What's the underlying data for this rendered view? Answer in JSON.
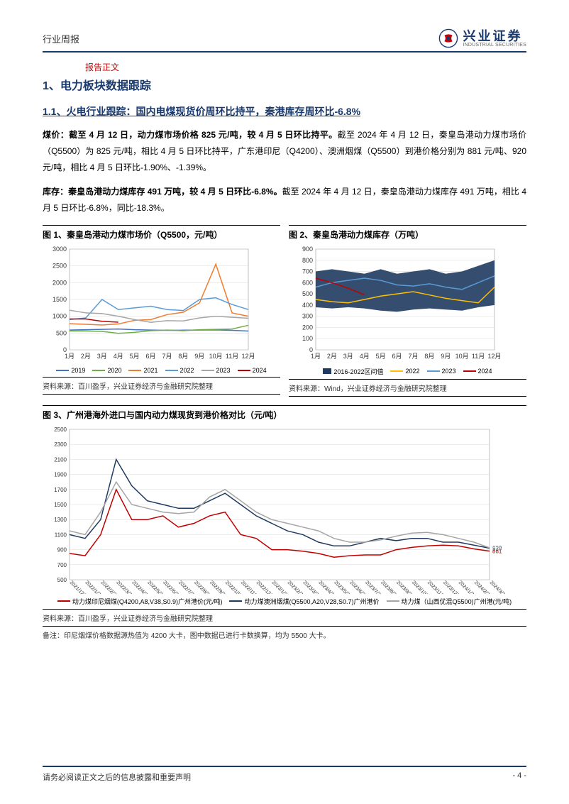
{
  "header": {
    "category": "行业周报",
    "company_cn": "兴业证券",
    "company_en": "INDUSTRIAL SECURITIES"
  },
  "red_label": "报告正文",
  "section1": {
    "num": "1、",
    "title": "电力板块数据跟踪"
  },
  "section11": {
    "num": "1.1、",
    "title": "火电行业跟踪：国内电煤现货价周环比持平，秦港库存周环比-6.8%"
  },
  "para1": {
    "lead": "煤价：截至 4 月 12 日，动力煤市场价格 825 元/吨，较 4 月 5 日环比持平。",
    "body": "截至 2024 年 4 月 12 日，秦皇岛港动力煤市场价（Q5500）为 825 元/吨，相比 4 月 5 日环比持平，广东港印尼（Q4200）、澳洲烟煤（Q5500）到港价格分别为 881 元/吨、920 元/吨，相比 4 月 5 日环比-1.90%、-1.39%。"
  },
  "para2": {
    "lead": "库存：秦皇岛港动力煤库存 491 万吨，较 4 月 5 日环比-6.8%。",
    "body": "截至 2024 年 4 月 12 日，秦皇岛港动力煤库存 491 万吨，相比 4 月 5 日环比-6.8%，同比-18.3%。"
  },
  "chart1": {
    "title": "图 1、秦皇岛港动力煤市场价（Q5500，元/吨）",
    "source": "资料来源：百川盈孚，兴业证券经济与金融研究院整理",
    "type": "line",
    "ylim": [
      0,
      3000
    ],
    "yticks": [
      0,
      500,
      1000,
      1500,
      2000,
      2500,
      3000
    ],
    "xlabels": [
      "1月",
      "2月",
      "3月",
      "4月",
      "5月",
      "6月",
      "7月",
      "8月",
      "9月",
      "10月",
      "11月",
      "12月"
    ],
    "series": [
      {
        "name": "2019",
        "color": "#4472c4",
        "data": [
          590,
          600,
          610,
          620,
          600,
          590,
          580,
          585,
          590,
          595,
          580,
          560
        ]
      },
      {
        "name": "2020",
        "color": "#70ad47",
        "data": [
          560,
          560,
          550,
          490,
          520,
          570,
          590,
          570,
          600,
          610,
          620,
          730
        ]
      },
      {
        "name": "2021",
        "color": "#ed7d31",
        "data": [
          780,
          760,
          740,
          770,
          880,
          900,
          1050,
          1120,
          1400,
          2550,
          1100,
          1000
        ]
      },
      {
        "name": "2022",
        "color": "#5b9bd5",
        "data": [
          900,
          950,
          1500,
          1200,
          1250,
          1300,
          1200,
          1170,
          1500,
          1550,
          1350,
          1200
        ]
      },
      {
        "name": "2023",
        "color": "#a5a5a5",
        "data": [
          1180,
          1100,
          1080,
          1000,
          900,
          820,
          870,
          860,
          950,
          1000,
          970,
          940
        ]
      },
      {
        "name": "2024",
        "color": "#c00000",
        "data": [
          920,
          920,
          850,
          825,
          null,
          null,
          null,
          null,
          null,
          null,
          null,
          null
        ]
      }
    ],
    "background": "#ffffff",
    "grid_color": "#d9d9d9",
    "axis_color": "#808080",
    "font_size": 9
  },
  "chart2": {
    "title": "图 2、秦皇岛港动力煤库存（万吨）",
    "source": "资料来源：Wind，兴业证券经济与金融研究院整理",
    "type": "area-line",
    "ylim": [
      0,
      900
    ],
    "yticks": [
      0,
      100,
      200,
      300,
      400,
      500,
      600,
      700,
      800,
      900
    ],
    "xlabels": [
      "1月",
      "2月",
      "3月",
      "4月",
      "5月",
      "6月",
      "7月",
      "8月",
      "9月",
      "10月",
      "11月",
      "12月"
    ],
    "band": {
      "name": "2016-2022区间值",
      "color": "#1f3a5f",
      "upper": [
        700,
        720,
        700,
        680,
        720,
        680,
        700,
        720,
        680,
        700,
        750,
        800
      ],
      "lower": [
        380,
        370,
        380,
        370,
        350,
        340,
        360,
        370,
        360,
        350,
        380,
        400
      ]
    },
    "series": [
      {
        "name": "2022",
        "color": "#ffc000",
        "data": [
          450,
          430,
          420,
          450,
          480,
          500,
          520,
          490,
          460,
          440,
          420,
          560
        ]
      },
      {
        "name": "2023",
        "color": "#5b9bd5",
        "data": [
          560,
          600,
          620,
          640,
          620,
          580,
          570,
          590,
          560,
          540,
          600,
          660
        ]
      },
      {
        "name": "2024",
        "color": "#c00000",
        "data": [
          640,
          600,
          550,
          491,
          null,
          null,
          null,
          null,
          null,
          null,
          null,
          null
        ]
      }
    ],
    "background": "#ffffff",
    "grid_color": "#d9d9d9",
    "axis_color": "#808080",
    "font_size": 9
  },
  "chart3": {
    "title": "图 3、广州港海外进口与国内动力煤现货到港价格对比（元/吨）",
    "source": "资料来源：百川盈孚，兴业证券经济与金融研究院整理",
    "note": "备注：印尼烟煤价格数据源热值为 4200 大卡，图中数据已进行卡数换算，均为 5500 大卡。",
    "type": "line",
    "ylim": [
      500,
      2500
    ],
    "yticks": [
      500,
      700,
      900,
      1100,
      1300,
      1500,
      1700,
      1900,
      2100,
      2300,
      2500
    ],
    "xlabels": [
      "2021/12/31",
      "2022/1/28",
      "2022/2/28",
      "2022/3/31",
      "2022/4/30",
      "2022/5/31",
      "2022/6/30",
      "2022/7/31",
      "2022/8/31",
      "2022/9/30",
      "2022/10/31",
      "2022/11/30",
      "2022/12/31",
      "2023/1/31",
      "2023/2/28",
      "2023/3/31",
      "2023/4/30",
      "2023/5/31",
      "2023/6/30",
      "2023/7/31",
      "2023/8/31",
      "2023/9/30",
      "2023/10/31",
      "2023/11/30",
      "2023/12/31",
      "2024/1/31",
      "2024/2/29",
      "2024/3/31"
    ],
    "series": [
      {
        "name": "动力煤印尼烟煤(Q4200,A8,V38,S0.9)广州港价(元/吨)",
        "color": "#c00000",
        "data": [
          850,
          820,
          1100,
          1700,
          1300,
          1300,
          1350,
          1200,
          1250,
          1350,
          1400,
          1100,
          1050,
          900,
          900,
          880,
          850,
          800,
          820,
          830,
          830,
          900,
          930,
          950,
          960,
          950,
          910,
          881
        ],
        "end_label": "881"
      },
      {
        "name": "动力煤澳洲烟煤(Q5500,A20,V28,S0.7)广州港价",
        "color": "#1f3a5f",
        "data": [
          1100,
          1050,
          1300,
          2100,
          1750,
          1550,
          1500,
          1450,
          1450,
          1550,
          1650,
          1500,
          1350,
          1250,
          1150,
          1100,
          1000,
          950,
          950,
          1000,
          1050,
          1020,
          1050,
          1050,
          1000,
          1000,
          960,
          920
        ],
        "end_label": "920"
      },
      {
        "name": "动力煤（山西优混Q5500)广州港(元/吨)",
        "color": "#a5a5a5",
        "data": [
          1150,
          1100,
          1400,
          1800,
          1500,
          1450,
          1400,
          1380,
          1400,
          1600,
          1700,
          1550,
          1400,
          1300,
          1250,
          1200,
          1150,
          1050,
          1000,
          1000,
          1030,
          1080,
          1120,
          1130,
          1100,
          1050,
          1000,
          925
        ],
        "end_label": "925"
      }
    ],
    "background": "#ffffff",
    "grid_color": "#d9d9d9",
    "axis_color": "#808080",
    "font_size": 8
  },
  "footer": {
    "disclaimer": "请务必阅读正文之后的信息披露和重要声明",
    "page": "- 4 -"
  }
}
